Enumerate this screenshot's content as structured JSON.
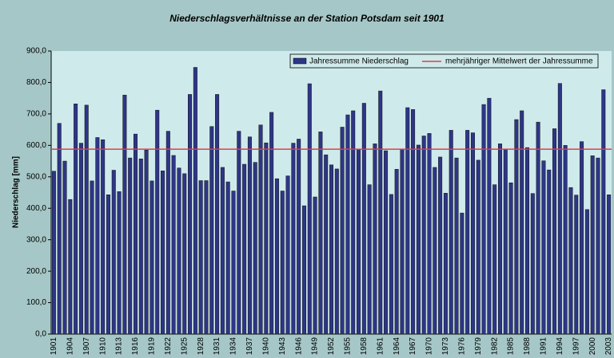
{
  "chart_data": {
    "type": "bar",
    "title": "Niederschlagsverhältnisse an der Station Potsdam seit 1901",
    "y_label": "Niederschlag [mm]",
    "categories": [
      "1901",
      null,
      null,
      "1904",
      null,
      null,
      "1907",
      null,
      null,
      "1910",
      null,
      null,
      "1913",
      null,
      null,
      "1916",
      null,
      null,
      "1919",
      null,
      null,
      "1922",
      null,
      null,
      "1925",
      null,
      null,
      "1928",
      null,
      null,
      "1931",
      null,
      null,
      "1934",
      null,
      null,
      "1937",
      null,
      null,
      "1940",
      null,
      null,
      "1943",
      null,
      null,
      "1946",
      null,
      null,
      "1949",
      null,
      null,
      "1952",
      null,
      null,
      "1955",
      null,
      null,
      "1958",
      null,
      null,
      "1961",
      null,
      null,
      "1964",
      null,
      null,
      "1967",
      null,
      null,
      "1970",
      null,
      null,
      "1973",
      null,
      null,
      "1976",
      null,
      null,
      "1979",
      null,
      null,
      "1982",
      null,
      null,
      "1985",
      null,
      null,
      "1988",
      null,
      null,
      "1991",
      null,
      null,
      "1994",
      null,
      null,
      "1997",
      null,
      null,
      "2000",
      null,
      null,
      "2003"
    ],
    "series": [
      {
        "name": "Jahressumme Niederschlag",
        "color": "#2e3688",
        "values": [
          518,
          670,
          550,
          428,
          732,
          607,
          728,
          487,
          625,
          618,
          443,
          521,
          453,
          760,
          560,
          636,
          557,
          585,
          487,
          712,
          519,
          645,
          568,
          528,
          510,
          762,
          848,
          488,
          488,
          660,
          762,
          530,
          484,
          455,
          645,
          540,
          627,
          546,
          665,
          608,
          705,
          494,
          455,
          503,
          607,
          620,
          408,
          796,
          436,
          643,
          570,
          538,
          525,
          658,
          697,
          710,
          587,
          734,
          475,
          605,
          773,
          583,
          444,
          524,
          588,
          720,
          714,
          601,
          630,
          638,
          530,
          563,
          448,
          648,
          560,
          385,
          648,
          640,
          553,
          730,
          750,
          475,
          605,
          587,
          481,
          682,
          710,
          593,
          447,
          674,
          551,
          522,
          653,
          797,
          600,
          466,
          442,
          612,
          396,
          567,
          560,
          777,
          443
        ]
      }
    ],
    "mean_line": {
      "name": "mehrjähriger Mittelwert der Jahressumme",
      "color": "#d8404f",
      "value": 588
    },
    "ylim": [
      0,
      900
    ],
    "yticks": [
      {
        "value": 0,
        "label": "0,0"
      },
      {
        "value": 100,
        "label": "100,0"
      },
      {
        "value": 200,
        "label": "200,0"
      },
      {
        "value": 300,
        "label": "300,0"
      },
      {
        "value": 400,
        "label": "400,0"
      },
      {
        "value": 500,
        "label": "500,0"
      },
      {
        "value": 600,
        "label": "600,0"
      },
      {
        "value": 700,
        "label": "700,0"
      },
      {
        "value": 800,
        "label": "800,0"
      },
      {
        "value": 900,
        "label": "900,0"
      }
    ],
    "legend": "top-right"
  }
}
